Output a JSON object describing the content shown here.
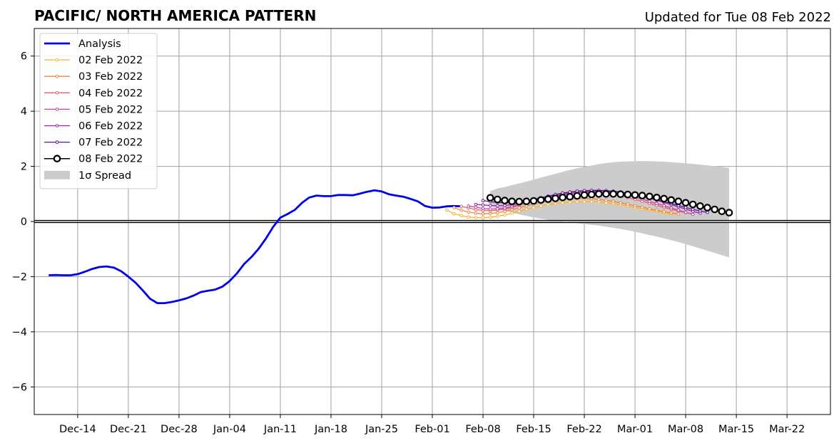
{
  "chart_data": {
    "type": "line",
    "title": "PACIFIC/ NORTH AMERICA PATTERN",
    "subtitle": "Updated for Tue 08 Feb 2022",
    "xlabel": "",
    "ylabel": "",
    "x_range": [
      "2021-12-08",
      "2022-03-28"
    ],
    "ylim": [
      -7,
      7
    ],
    "grid": true,
    "zero_line": true,
    "legend_position": "top-left",
    "x_ticks": [
      {
        "date": "2021-12-14",
        "label": "Dec-14"
      },
      {
        "date": "2021-12-21",
        "label": "Dec-21"
      },
      {
        "date": "2021-12-28",
        "label": "Dec-28"
      },
      {
        "date": "2022-01-04",
        "label": "Jan-04"
      },
      {
        "date": "2022-01-11",
        "label": "Jan-11"
      },
      {
        "date": "2022-01-18",
        "label": "Jan-18"
      },
      {
        "date": "2022-01-25",
        "label": "Jan-25"
      },
      {
        "date": "2022-02-01",
        "label": "Feb-01"
      },
      {
        "date": "2022-02-08",
        "label": "Feb-08"
      },
      {
        "date": "2022-02-15",
        "label": "Feb-15"
      },
      {
        "date": "2022-02-22",
        "label": "Feb-22"
      },
      {
        "date": "2022-03-01",
        "label": "Mar-01"
      },
      {
        "date": "2022-03-08",
        "label": "Mar-08"
      },
      {
        "date": "2022-03-15",
        "label": "Mar-15"
      },
      {
        "date": "2022-03-22",
        "label": "Mar-22"
      }
    ],
    "y_ticks": [
      {
        "value": 6,
        "label": "6"
      },
      {
        "value": 4,
        "label": "4"
      },
      {
        "value": 2,
        "label": "2"
      },
      {
        "value": 0,
        "label": "0"
      },
      {
        "value": -2,
        "label": "−2"
      },
      {
        "value": -4,
        "label": "−4"
      },
      {
        "value": -6,
        "label": "−6"
      }
    ],
    "analysis": {
      "name": "Analysis",
      "color": "#0000ee",
      "start_date": "2021-12-10",
      "values": [
        -1.95,
        -1.94,
        -1.95,
        -1.95,
        -1.91,
        -1.82,
        -1.72,
        -1.65,
        -1.63,
        -1.67,
        -1.8,
        -2.0,
        -2.22,
        -2.5,
        -2.8,
        -2.96,
        -2.96,
        -2.92,
        -2.86,
        -2.79,
        -2.69,
        -2.56,
        -2.51,
        -2.47,
        -2.36,
        -2.16,
        -1.88,
        -1.54,
        -1.29,
        -0.99,
        -0.62,
        -0.2,
        0.14,
        0.27,
        0.42,
        0.68,
        0.87,
        0.94,
        0.92,
        0.92,
        0.96,
        0.96,
        0.95,
        1.01,
        1.08,
        1.13,
        1.09,
        0.99,
        0.94,
        0.9,
        0.82,
        0.73,
        0.56,
        0.5,
        0.51,
        0.55,
        0.56,
        0.55
      ]
    },
    "forecasts": [
      {
        "name": "02 Feb 2022",
        "color": "#f9b32a",
        "start_date": "2022-02-03",
        "values": [
          0.42,
          0.28,
          0.21,
          0.16,
          0.14,
          0.14,
          0.15,
          0.19,
          0.24,
          0.3,
          0.37,
          0.44,
          0.5,
          0.56,
          0.61,
          0.65,
          0.68,
          0.7,
          0.71,
          0.72,
          0.72,
          0.71,
          0.68,
          0.65,
          0.61,
          0.56,
          0.51,
          0.46,
          0.41,
          0.36,
          0.32,
          0.28
        ]
      },
      {
        "name": "03 Feb 2022",
        "color": "#f0853c",
        "start_date": "2022-02-04",
        "values": [
          0.5,
          0.41,
          0.34,
          0.3,
          0.28,
          0.29,
          0.32,
          0.37,
          0.43,
          0.5,
          0.57,
          0.63,
          0.69,
          0.74,
          0.78,
          0.81,
          0.83,
          0.84,
          0.84,
          0.83,
          0.8,
          0.77,
          0.73,
          0.68,
          0.63,
          0.57,
          0.52,
          0.46,
          0.41,
          0.36,
          0.31,
          0.27
        ]
      },
      {
        "name": "04 Feb 2022",
        "color": "#e4606b",
        "start_date": "2022-02-05",
        "values": [
          0.55,
          0.49,
          0.43,
          0.4,
          0.39,
          0.41,
          0.45,
          0.51,
          0.59,
          0.67,
          0.75,
          0.82,
          0.89,
          0.95,
          1.0,
          1.03,
          1.05,
          1.06,
          1.06,
          1.05,
          1.02,
          0.98,
          0.93,
          0.87,
          0.8,
          0.73,
          0.66,
          0.58,
          0.51,
          0.44,
          0.38,
          0.32
        ]
      },
      {
        "name": "05 Feb 2022",
        "color": "#c1449a",
        "start_date": "2022-02-06",
        "values": [
          0.56,
          0.52,
          0.47,
          0.45,
          0.46,
          0.49,
          0.54,
          0.61,
          0.69,
          0.77,
          0.85,
          0.92,
          0.98,
          1.03,
          1.07,
          1.1,
          1.11,
          1.12,
          1.11,
          1.09,
          1.06,
          1.01,
          0.95,
          0.88,
          0.81,
          0.73,
          0.65,
          0.57,
          0.49,
          0.41,
          0.33,
          0.26
        ]
      },
      {
        "name": "06 Feb 2022",
        "color": "#9325a5",
        "start_date": "2022-02-07",
        "values": [
          0.62,
          0.6,
          0.58,
          0.57,
          0.58,
          0.61,
          0.65,
          0.7,
          0.76,
          0.82,
          0.88,
          0.93,
          0.98,
          1.02,
          1.05,
          1.08,
          1.09,
          1.1,
          1.1,
          1.09,
          1.06,
          1.02,
          0.97,
          0.91,
          0.84,
          0.77,
          0.69,
          0.61,
          0.53,
          0.45,
          0.37,
          0.3
        ]
      },
      {
        "name": "07 Feb 2022",
        "color": "#5a1199",
        "start_date": "2022-02-08",
        "values": [
          0.76,
          0.72,
          0.69,
          0.68,
          0.69,
          0.71,
          0.75,
          0.8,
          0.86,
          0.92,
          0.98,
          1.03,
          1.07,
          1.1,
          1.12,
          1.13,
          1.13,
          1.12,
          1.1,
          1.07,
          1.03,
          0.98,
          0.92,
          0.86,
          0.79,
          0.72,
          0.65,
          0.58,
          0.51,
          0.44,
          0.38,
          0.33
        ]
      }
    ],
    "current_forecast": {
      "name": "08 Feb 2022",
      "color": "#000000",
      "start_date": "2022-02-09",
      "values": [
        0.86,
        0.8,
        0.76,
        0.73,
        0.72,
        0.73,
        0.75,
        0.78,
        0.81,
        0.84,
        0.87,
        0.9,
        0.93,
        0.96,
        0.98,
        1.0,
        1.0,
        1.0,
        0.99,
        0.98,
        0.96,
        0.94,
        0.91,
        0.87,
        0.83,
        0.78,
        0.73,
        0.68,
        0.62,
        0.56,
        0.5,
        0.44,
        0.37,
        0.32
      ]
    },
    "spread": {
      "name": "1σ Spread",
      "color": "#cccccc",
      "start_date": "2022-02-09",
      "upper": [
        1.1,
        1.2,
        1.25,
        1.32,
        1.38,
        1.45,
        1.52,
        1.59,
        1.66,
        1.73,
        1.8,
        1.87,
        1.93,
        1.98,
        2.03,
        2.08,
        2.12,
        2.15,
        2.17,
        2.18,
        2.19,
        2.19,
        2.19,
        2.18,
        2.17,
        2.15,
        2.13,
        2.11,
        2.09,
        2.06,
        2.04,
        2.01,
        1.98,
        1.94
      ],
      "lower": [
        0.55,
        0.45,
        0.38,
        0.32,
        0.26,
        0.2,
        0.15,
        0.1,
        0.06,
        0.03,
        0.0,
        -0.03,
        -0.06,
        -0.09,
        -0.12,
        -0.15,
        -0.19,
        -0.23,
        -0.27,
        -0.32,
        -0.37,
        -0.43,
        -0.49,
        -0.55,
        -0.61,
        -0.68,
        -0.75,
        -0.82,
        -0.9,
        -0.98,
        -1.06,
        -1.14,
        -1.22,
        -1.3
      ]
    }
  }
}
